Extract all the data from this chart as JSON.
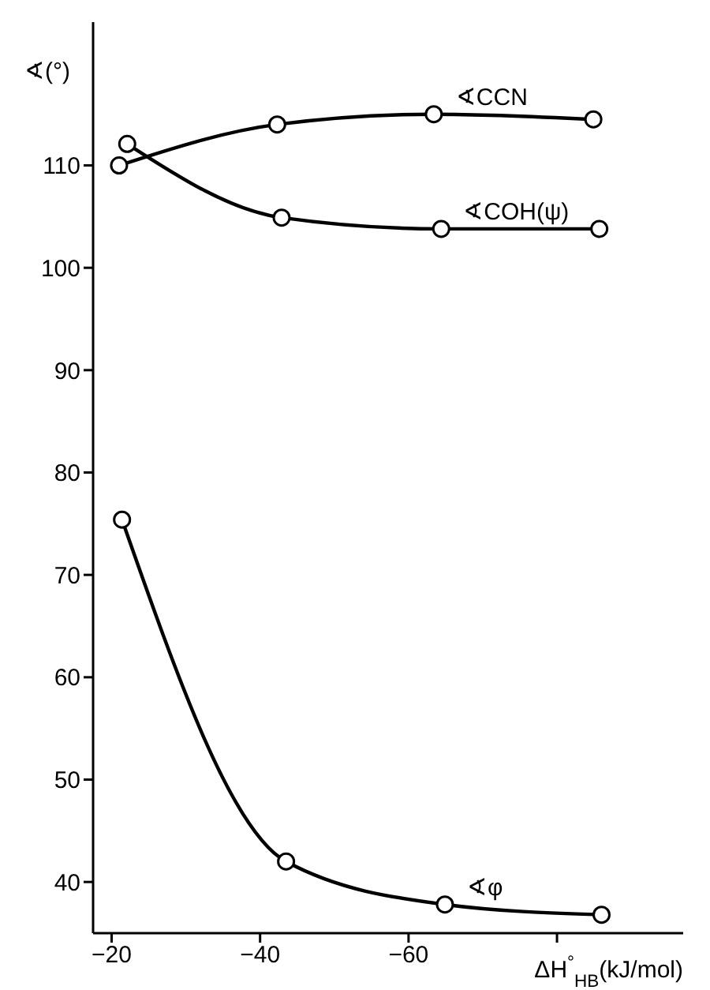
{
  "chart_data": {
    "type": "line",
    "xlabel": "ΔH$^{°}$$_{HB}$(kJ/mol)",
    "ylabel": "∢(°)",
    "xlim": [
      -17.5,
      -97
    ],
    "xticks": [
      -20,
      -40,
      -60,
      {
        "value": -80,
        "label": null
      }
    ],
    "ylim": [
      35,
      124
    ],
    "yticks": [
      40,
      50,
      60,
      70,
      80,
      90,
      100,
      110
    ],
    "marker": "circle",
    "line_style": "solid",
    "series": [
      {
        "name": "∢CCN",
        "color": "#000000",
        "x": [
          -21,
          -42.3,
          -63.4,
          -84.9
        ],
        "values": [
          110,
          114,
          115,
          114.5
        ]
      },
      {
        "name": "∢COH(ψ)",
        "color": "#000000",
        "x": [
          -22.1,
          -42.9,
          -64.4,
          -85.7
        ],
        "values": [
          112.1,
          104.9,
          103.8,
          103.8
        ]
      },
      {
        "name": "∢φ",
        "color": "#000000",
        "x": [
          -21.4,
          -43.5,
          -64.9,
          -86
        ],
        "values": [
          75.4,
          42,
          37.8,
          36.8
        ]
      }
    ]
  }
}
